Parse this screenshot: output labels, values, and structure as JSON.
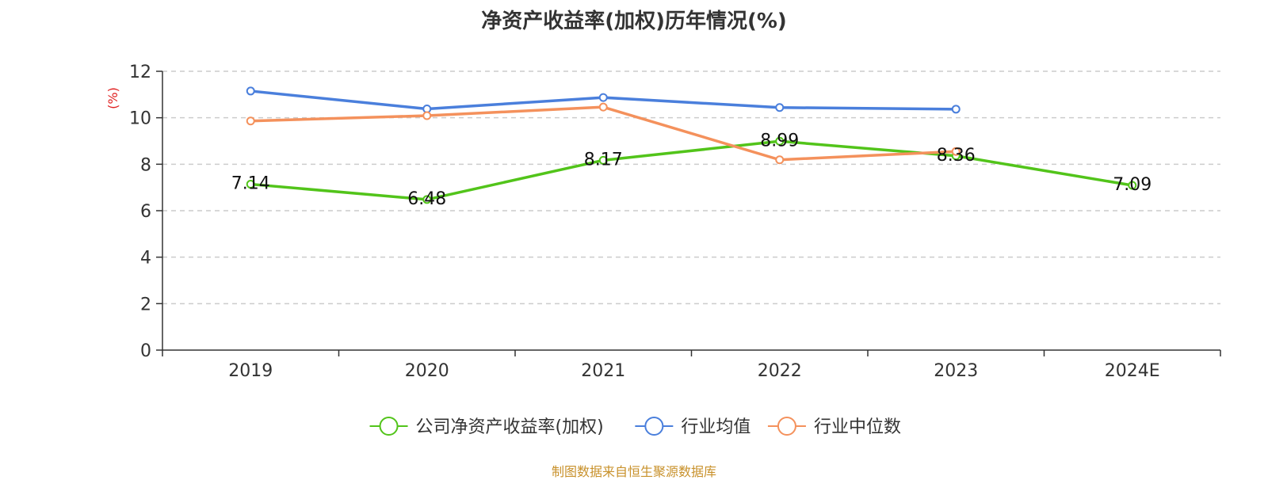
{
  "chart_data": {
    "type": "line",
    "title": "净资产收益率(加权)历年情况(%)",
    "ylabel": "(%)",
    "xlabel": "",
    "categories": [
      "2019",
      "2020",
      "2021",
      "2022",
      "2023",
      "2024E"
    ],
    "ylim": [
      0,
      12
    ],
    "yticks": [
      0,
      2,
      4,
      6,
      8,
      10,
      12
    ],
    "grid": true,
    "legend_position": "bottom",
    "series": [
      {
        "name": "公司净资产收益率(加权)",
        "color": "#52c41a",
        "values": [
          7.14,
          6.48,
          8.17,
          8.99,
          8.36,
          7.09
        ],
        "labels": [
          "7.14",
          "6.48",
          "8.17",
          "8.99",
          "8.36",
          "7.09"
        ]
      },
      {
        "name": "行业均值",
        "color": "#4a7fdc",
        "values": [
          11.15,
          10.38,
          10.87,
          10.44,
          10.37,
          null
        ]
      },
      {
        "name": "行业中位数",
        "color": "#f4915c",
        "values": [
          9.86,
          10.09,
          10.46,
          8.19,
          8.55,
          null
        ]
      }
    ]
  },
  "footer": {
    "source": "制图数据来自恒生聚源数据库"
  }
}
